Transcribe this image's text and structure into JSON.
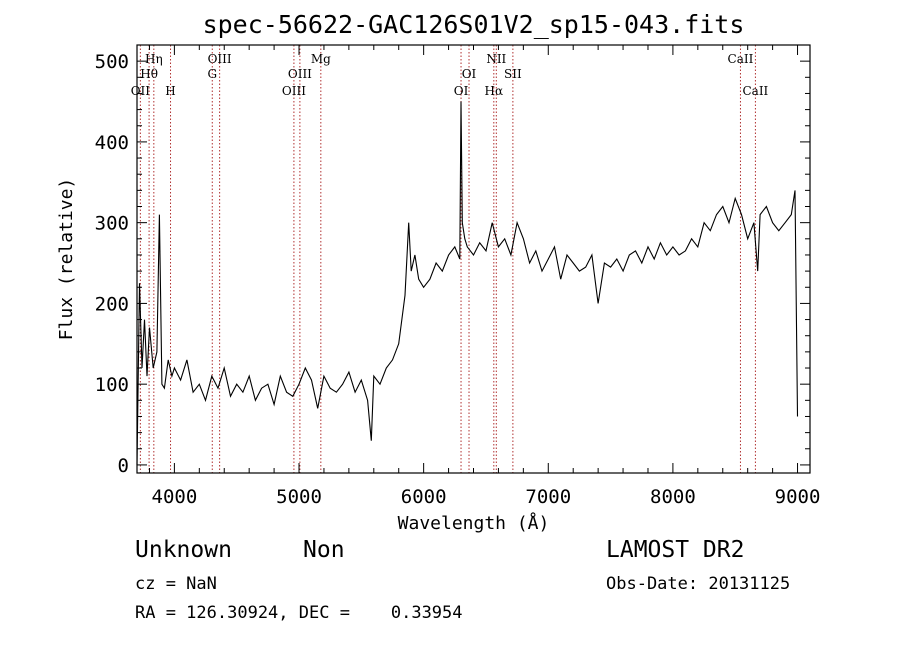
{
  "chart_data": {
    "type": "line",
    "title": "spec-56622-GAC126S01V2_sp15-043.fits",
    "xlabel": "Wavelength (Å)",
    "ylabel": "Flux (relative)",
    "xlim": [
      3700,
      9100
    ],
    "ylim": [
      -10,
      520
    ],
    "xticks": [
      4000,
      5000,
      6000,
      7000,
      8000,
      9000
    ],
    "yticks": [
      0,
      100,
      200,
      300,
      400,
      500
    ],
    "grid": false,
    "series": [
      {
        "x": [
          3700,
          3720,
          3740,
          3760,
          3780,
          3800,
          3830,
          3860,
          3880,
          3900,
          3920,
          3950,
          3980,
          4000,
          4050,
          4100,
          4150,
          4200,
          4250,
          4300,
          4350,
          4400,
          4450,
          4500,
          4550,
          4600,
          4650,
          4700,
          4750,
          4800,
          4850,
          4900,
          4950,
          5000,
          5050,
          5100,
          5150,
          5200,
          5250,
          5300,
          5350,
          5400,
          5450,
          5500,
          5550,
          5580,
          5600,
          5650,
          5700,
          5750,
          5800,
          5850,
          5880,
          5900,
          5930,
          5960,
          6000,
          6050,
          6100,
          6150,
          6200,
          6250,
          6290,
          6300,
          6310,
          6330,
          6350,
          6400,
          6450,
          6500,
          6550,
          6600,
          6650,
          6700,
          6750,
          6800,
          6850,
          6900,
          6950,
          7000,
          7050,
          7100,
          7150,
          7200,
          7250,
          7300,
          7350,
          7400,
          7450,
          7500,
          7550,
          7600,
          7650,
          7700,
          7750,
          7800,
          7850,
          7900,
          7950,
          8000,
          8050,
          8100,
          8150,
          8200,
          8250,
          8300,
          8350,
          8400,
          8450,
          8500,
          8550,
          8600,
          8650,
          8680,
          8700,
          8750,
          8800,
          8850,
          8900,
          8950,
          8980,
          9000
        ],
        "y": [
          0,
          225,
          120,
          180,
          110,
          170,
          120,
          140,
          310,
          100,
          95,
          130,
          110,
          120,
          105,
          130,
          90,
          100,
          80,
          110,
          95,
          120,
          85,
          100,
          90,
          110,
          80,
          95,
          100,
          75,
          110,
          90,
          85,
          100,
          120,
          105,
          70,
          110,
          95,
          90,
          100,
          115,
          90,
          105,
          80,
          30,
          110,
          100,
          120,
          130,
          150,
          210,
          300,
          240,
          260,
          230,
          220,
          230,
          250,
          240,
          260,
          270,
          255,
          450,
          300,
          280,
          270,
          260,
          275,
          265,
          300,
          270,
          280,
          260,
          300,
          280,
          250,
          265,
          240,
          255,
          270,
          230,
          260,
          250,
          240,
          245,
          260,
          200,
          250,
          245,
          255,
          240,
          260,
          265,
          250,
          270,
          255,
          275,
          260,
          270,
          260,
          265,
          280,
          270,
          300,
          290,
          310,
          320,
          300,
          330,
          310,
          280,
          300,
          240,
          310,
          320,
          300,
          290,
          300,
          310,
          340,
          60
        ]
      }
    ],
    "annotations": [
      {
        "label": "OII",
        "x": 3727,
        "row": 3
      },
      {
        "label": "Hη",
        "x": 3835,
        "row": 1
      },
      {
        "label": "Hθ",
        "x": 3797,
        "row": 2
      },
      {
        "label": "H",
        "x": 3969,
        "row": 3
      },
      {
        "label": "OIII",
        "x": 4363,
        "row": 1
      },
      {
        "label": "G",
        "x": 4304,
        "row": 2
      },
      {
        "label": "OIII",
        "x": 5007,
        "row": 2
      },
      {
        "label": "OIII",
        "x": 4959,
        "row": 3
      },
      {
        "label": "Mg",
        "x": 5175,
        "row": 1
      },
      {
        "label": "NII",
        "x": 6583,
        "row": 1
      },
      {
        "label": "OI",
        "x": 6364,
        "row": 2
      },
      {
        "label": "OI",
        "x": 6300,
        "row": 3
      },
      {
        "label": "SII",
        "x": 6716,
        "row": 2
      },
      {
        "label": "Hα",
        "x": 6563,
        "row": 3
      },
      {
        "label": "CaII",
        "x": 8542,
        "row": 1
      },
      {
        "label": "CaII",
        "x": 8662,
        "row": 3
      }
    ]
  },
  "info": {
    "class": "Unknown",
    "subclass": "Non",
    "survey": "LAMOST DR2",
    "cz": "cz = NaN",
    "obs_date": "Obs-Date: 20131125",
    "coords": "RA = 126.30924, DEC =    0.33954"
  }
}
